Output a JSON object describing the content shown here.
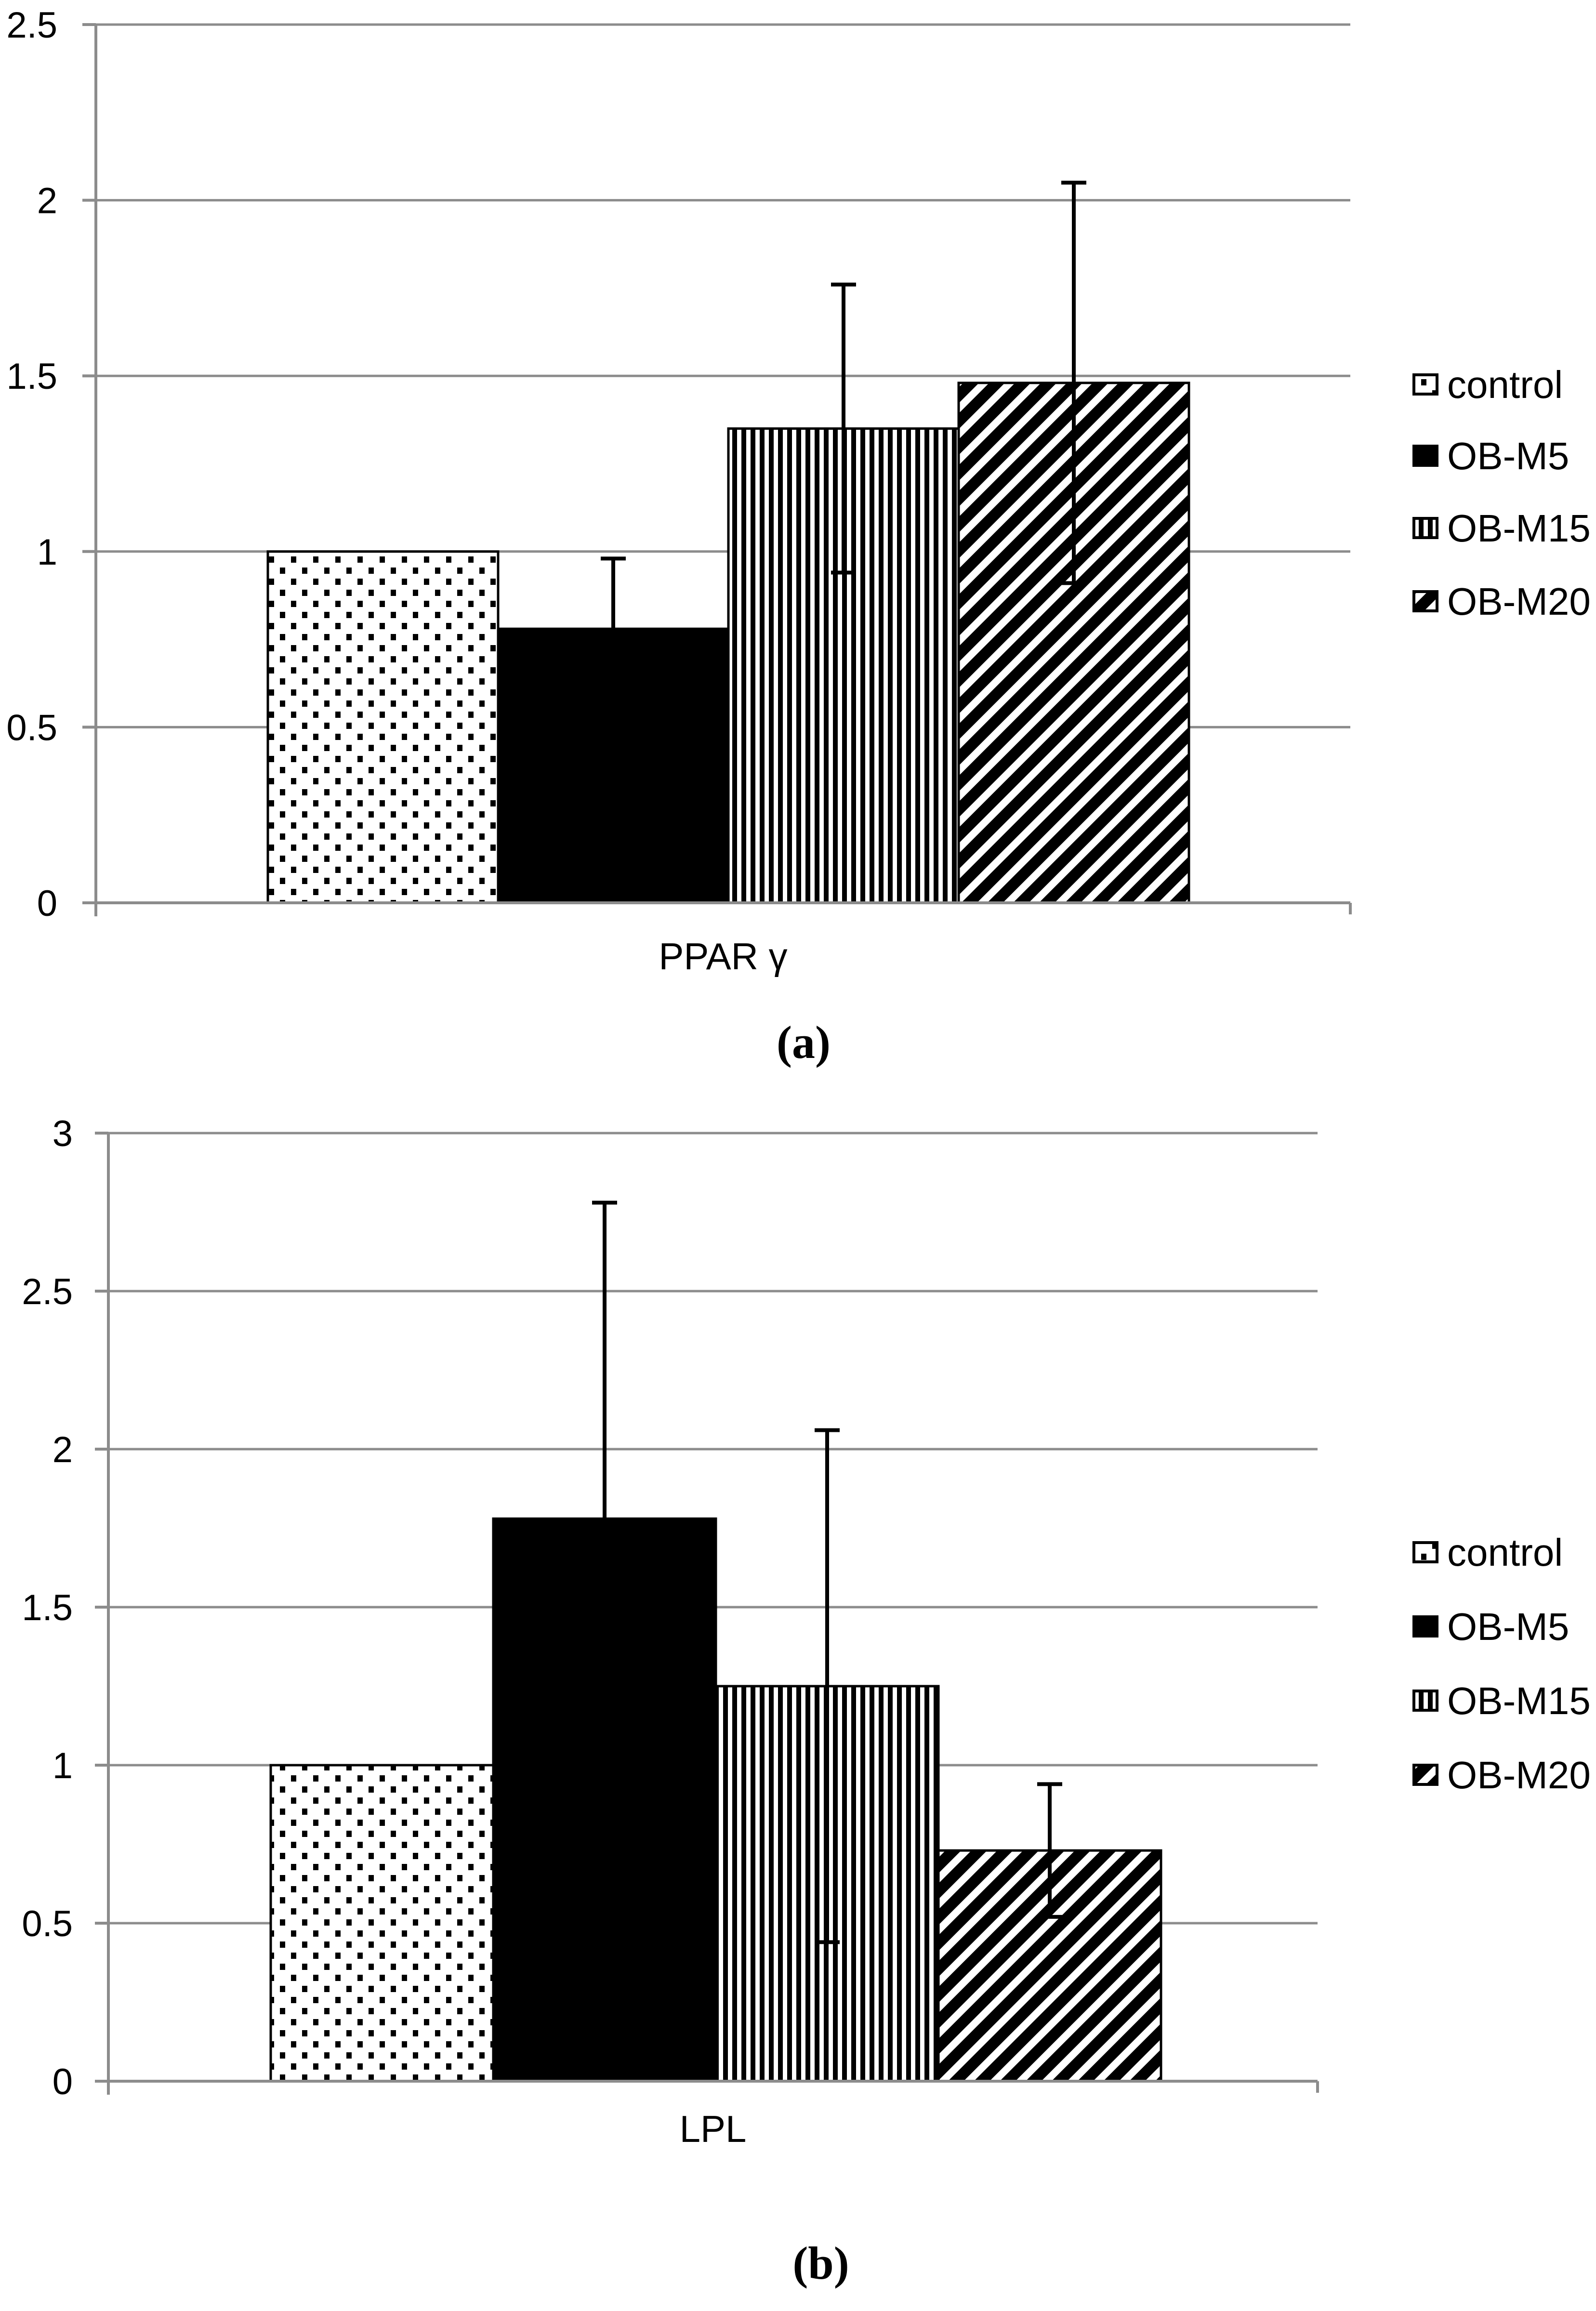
{
  "figure": {
    "background": "#ffffff",
    "description_visible_text_only": true
  },
  "colors": {
    "grid": "#8c8c8c",
    "ink": "#000000",
    "bar_fill_white": "#ffffff"
  },
  "chart_data": [
    {
      "type": "bar",
      "title": "",
      "xlabel": "PPAR γ",
      "ylabel": "",
      "panel_label": "(a)",
      "categories": [
        "control",
        "OB-M5",
        "OB-M15",
        "OB-M20"
      ],
      "values": [
        1.0,
        0.78,
        1.35,
        1.48
      ],
      "errors": [
        null,
        0.2,
        0.41,
        0.57
      ],
      "ylim": [
        0,
        2.5
      ],
      "ytick_step": 0.5,
      "ytick_labels": [
        "0",
        "0.5",
        "1",
        "1.5",
        "2",
        "2.5"
      ],
      "grid": true,
      "legend_position": "right",
      "legend": [
        {
          "label": "control",
          "pattern": "dotted"
        },
        {
          "label": "OB-M5",
          "pattern": "solid"
        },
        {
          "label": "OB-M15",
          "pattern": "vertical-stripes"
        },
        {
          "label": "OB-M20",
          "pattern": "diagonal-stripes"
        }
      ]
    },
    {
      "type": "bar",
      "title": "",
      "xlabel": "LPL",
      "ylabel": "",
      "panel_label": "(b)",
      "categories": [
        "control",
        "OB-M5",
        "OB-M15",
        "OB-M20"
      ],
      "values": [
        1.0,
        1.78,
        1.25,
        0.73
      ],
      "errors": [
        null,
        1.0,
        0.81,
        0.21
      ],
      "ylim": [
        0,
        3
      ],
      "ytick_step": 0.5,
      "ytick_labels": [
        "0",
        "0.5",
        "1",
        "1.5",
        "2",
        "2.5",
        "3"
      ],
      "grid": true,
      "legend_position": "right",
      "legend": [
        {
          "label": "control",
          "pattern": "dotted"
        },
        {
          "label": "OB-M5",
          "pattern": "solid"
        },
        {
          "label": "OB-M15",
          "pattern": "vertical-stripes"
        },
        {
          "label": "OB-M20",
          "pattern": "diagonal-stripes"
        }
      ]
    }
  ]
}
